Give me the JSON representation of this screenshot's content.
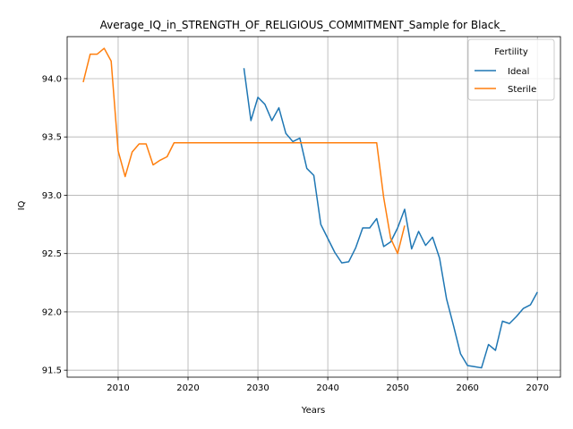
{
  "chart_data": {
    "type": "line",
    "title": "Average_IQ_in_STRENGTH_OF_RELIGIOUS_COMMITMENT_Sample for Black_",
    "xlabel": "Years",
    "ylabel": "IQ",
    "xlim": [
      2002.7,
      2073.3
    ],
    "ylim": [
      91.44,
      94.36
    ],
    "xticks": [
      2010,
      2020,
      2030,
      2040,
      2050,
      2060,
      2070
    ],
    "yticks": [
      91.5,
      92.0,
      92.5,
      93.0,
      93.5,
      94.0
    ],
    "xtick_labels": [
      "2010",
      "2020",
      "2030",
      "2040",
      "2050",
      "2060",
      "2070"
    ],
    "ytick_labels": [
      "91.5",
      "92.0",
      "92.5",
      "93.0",
      "93.5",
      "94.0"
    ],
    "grid": true,
    "legend": {
      "title": "Fertility",
      "placement": "top-right"
    },
    "series": [
      {
        "name": "Ideal",
        "color": "#1f77b4",
        "x": [
          2028,
          2029,
          2030,
          2031,
          2032,
          2033,
          2034,
          2035,
          2036,
          2037,
          2038,
          2039,
          2040,
          2041,
          2042,
          2043,
          2044,
          2045,
          2046,
          2047,
          2048,
          2049,
          2050,
          2051,
          2052,
          2053,
          2054,
          2055,
          2056,
          2057,
          2058,
          2059,
          2060,
          2061,
          2062,
          2063,
          2064,
          2065,
          2066,
          2067,
          2068,
          2069,
          2070
        ],
        "y": [
          94.09,
          93.64,
          93.84,
          93.78,
          93.64,
          93.75,
          93.53,
          93.46,
          93.49,
          93.23,
          93.17,
          92.75,
          92.63,
          92.51,
          92.42,
          92.43,
          92.55,
          92.72,
          92.72,
          92.8,
          92.56,
          92.6,
          92.72,
          92.88,
          92.54,
          92.69,
          92.57,
          92.64,
          92.46,
          92.11,
          91.88,
          91.64,
          91.54,
          91.53,
          91.52,
          91.72,
          91.67,
          91.92,
          91.9,
          91.96,
          92.03,
          92.06,
          92.17
        ]
      },
      {
        "name": "Sterile",
        "color": "#ff7f0e",
        "x": [
          2005,
          2006,
          2007,
          2008,
          2009,
          2010,
          2011,
          2012,
          2013,
          2014,
          2015,
          2016,
          2017,
          2018,
          2019,
          2020,
          2021,
          2022,
          2023,
          2024,
          2025,
          2026,
          2027,
          2028,
          2029,
          2030,
          2031,
          2032,
          2033,
          2034,
          2035,
          2036,
          2037,
          2038,
          2039,
          2040,
          2041,
          2042,
          2043,
          2044,
          2045,
          2046,
          2047,
          2048,
          2049,
          2050,
          2051
        ],
        "y": [
          93.97,
          94.21,
          94.21,
          94.26,
          94.15,
          93.38,
          93.16,
          93.37,
          93.44,
          93.44,
          93.26,
          93.3,
          93.33,
          93.45,
          93.45,
          93.45,
          93.45,
          93.45,
          93.45,
          93.45,
          93.45,
          93.45,
          93.45,
          93.45,
          93.45,
          93.45,
          93.45,
          93.45,
          93.45,
          93.45,
          93.45,
          93.45,
          93.45,
          93.45,
          93.45,
          93.45,
          93.45,
          93.45,
          93.45,
          93.45,
          93.45,
          93.45,
          93.45,
          92.98,
          92.63,
          92.5,
          92.74
        ]
      }
    ]
  }
}
